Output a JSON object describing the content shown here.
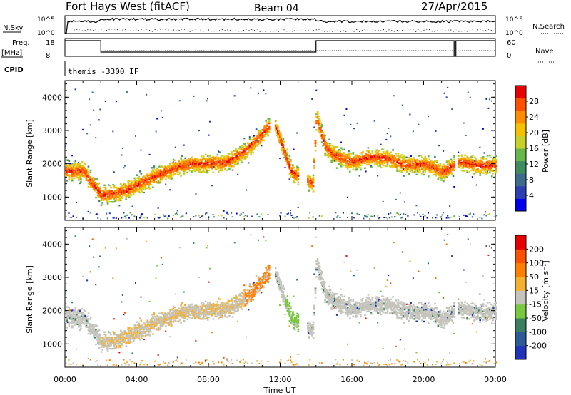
{
  "header": {
    "station": "Fort Hays West (fitACF)",
    "beam": "Beam 04",
    "date": "27/Apr/2015"
  },
  "top_panels": {
    "nsky_label": "N.Sky",
    "nsky_ticks": [
      "10^5",
      "10^0"
    ],
    "nsearch_label": "N.Search",
    "nsearch_ticks": [
      "10^5",
      "10^0"
    ],
    "freq_label_1": "Freq.",
    "freq_label_2": "[MHz]",
    "freq_ticks": [
      "18",
      "8"
    ],
    "nave_label": "Nave",
    "nave_ticks": [
      "60",
      "0"
    ],
    "cpid_label": "CPID",
    "cpid_text": "themis -3300 IF"
  },
  "chart_data": [
    {
      "type": "heatmap",
      "title": "",
      "xlabel": "",
      "ylabel": "Slant Range [km]",
      "xlim": [
        0,
        24
      ],
      "ylim": [
        300,
        4500
      ],
      "yticks": [
        "1000",
        "2000",
        "3000",
        "4000"
      ],
      "colorbar": {
        "label": "Power [dB]",
        "ticks": [
          "28",
          "24",
          "20",
          "16",
          "12",
          "8",
          "4"
        ],
        "colors": [
          "#0000ee",
          "#2c3fb3",
          "#3e6b8d",
          "#3f8c5f",
          "#68b54a",
          "#c8d12a",
          "#f5c000",
          "#ff8c00",
          "#ff5000",
          "#e60000"
        ]
      },
      "band": {
        "x": [
          0,
          1,
          2,
          3,
          4,
          5,
          6,
          7,
          8,
          9,
          10,
          11,
          11.6,
          12,
          12.6,
          13.2,
          13.8,
          14,
          14.5,
          15,
          16,
          17,
          18,
          19,
          20,
          21,
          22,
          23,
          24
        ],
        "y": [
          1780,
          1780,
          1050,
          1120,
          1350,
          1620,
          1850,
          2000,
          2000,
          2030,
          2380,
          2900,
          3300,
          2700,
          1750,
          1550,
          1400,
          3400,
          2500,
          2250,
          2050,
          2200,
          2150,
          1950,
          2000,
          1750,
          2050,
          1950,
          1950
        ]
      }
    },
    {
      "type": "heatmap",
      "title": "",
      "xlabel": "Time UT",
      "ylabel": "Slant Range [km]",
      "xlim": [
        0,
        24
      ],
      "ylim": [
        300,
        4500
      ],
      "xticks": [
        "00:00",
        "04:00",
        "08:00",
        "12:00",
        "16:00",
        "20:00",
        "00:00"
      ],
      "yticks": [
        "1000",
        "2000",
        "3000",
        "4000"
      ],
      "colorbar": {
        "label": "Velocity [m s⁻¹]",
        "ticks": [
          "200",
          "100",
          "50",
          "15",
          "-15",
          "-50",
          "-100",
          "-200"
        ],
        "colors": [
          "#2233bb",
          "#2d5a99",
          "#3a8060",
          "#78c840",
          "#c4c4bc",
          "#f5b030",
          "#ff8000",
          "#ff5000",
          "#e60000"
        ]
      }
    }
  ]
}
